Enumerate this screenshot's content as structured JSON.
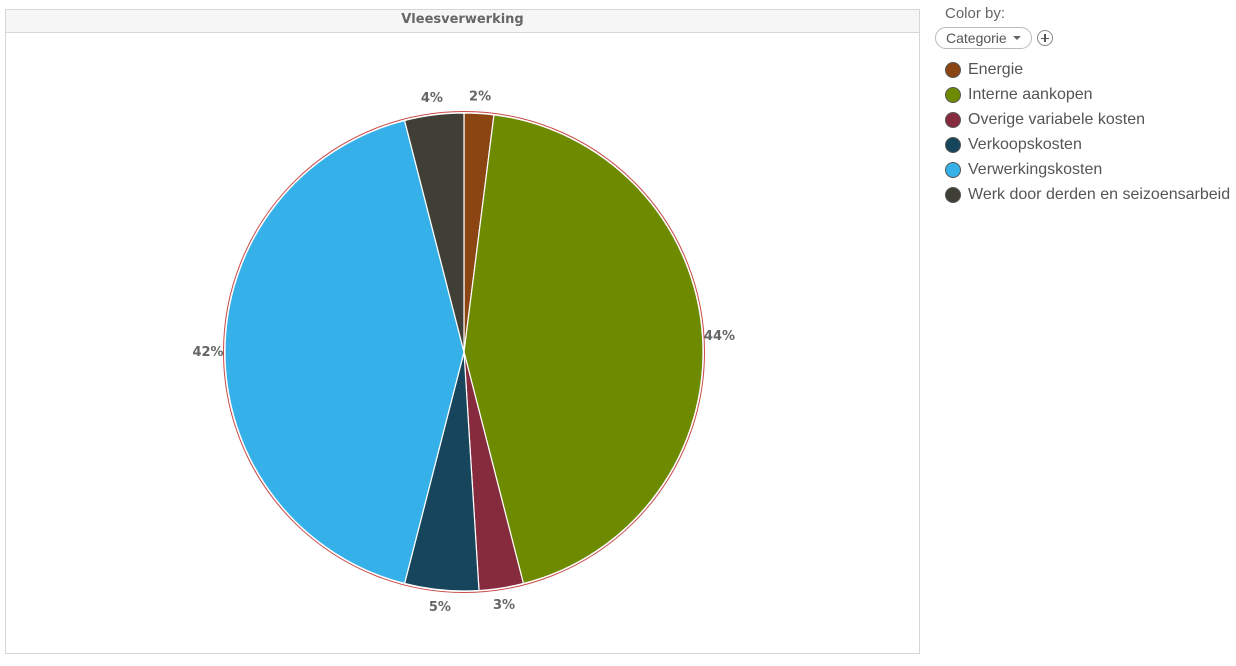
{
  "panel": {
    "title": "Vleesverwerking"
  },
  "sidebar": {
    "color_by_label": "Color by:",
    "color_by_value": "Categorie"
  },
  "chart_data": {
    "type": "pie",
    "title": "Vleesverwerking",
    "legend": "right",
    "slices": [
      {
        "name": "Energie",
        "value": 2,
        "label": "2%",
        "color": "#8B4513"
      },
      {
        "name": "Interne aankopen",
        "value": 44,
        "label": "44%",
        "color": "#6E8B00"
      },
      {
        "name": "Overige variabele kosten",
        "value": 3,
        "label": "3%",
        "color": "#862A3E"
      },
      {
        "name": "Verkoopskosten",
        "value": 5,
        "label": "5%",
        "color": "#17455B"
      },
      {
        "name": "Verwerkingskosten",
        "value": 42,
        "label": "42%",
        "color": "#36B0E8"
      },
      {
        "name": "Werk door derden en seizoensarbeid",
        "value": 4,
        "label": "4%",
        "color": "#403F36"
      }
    ],
    "outline_color": "#C94A4A"
  }
}
